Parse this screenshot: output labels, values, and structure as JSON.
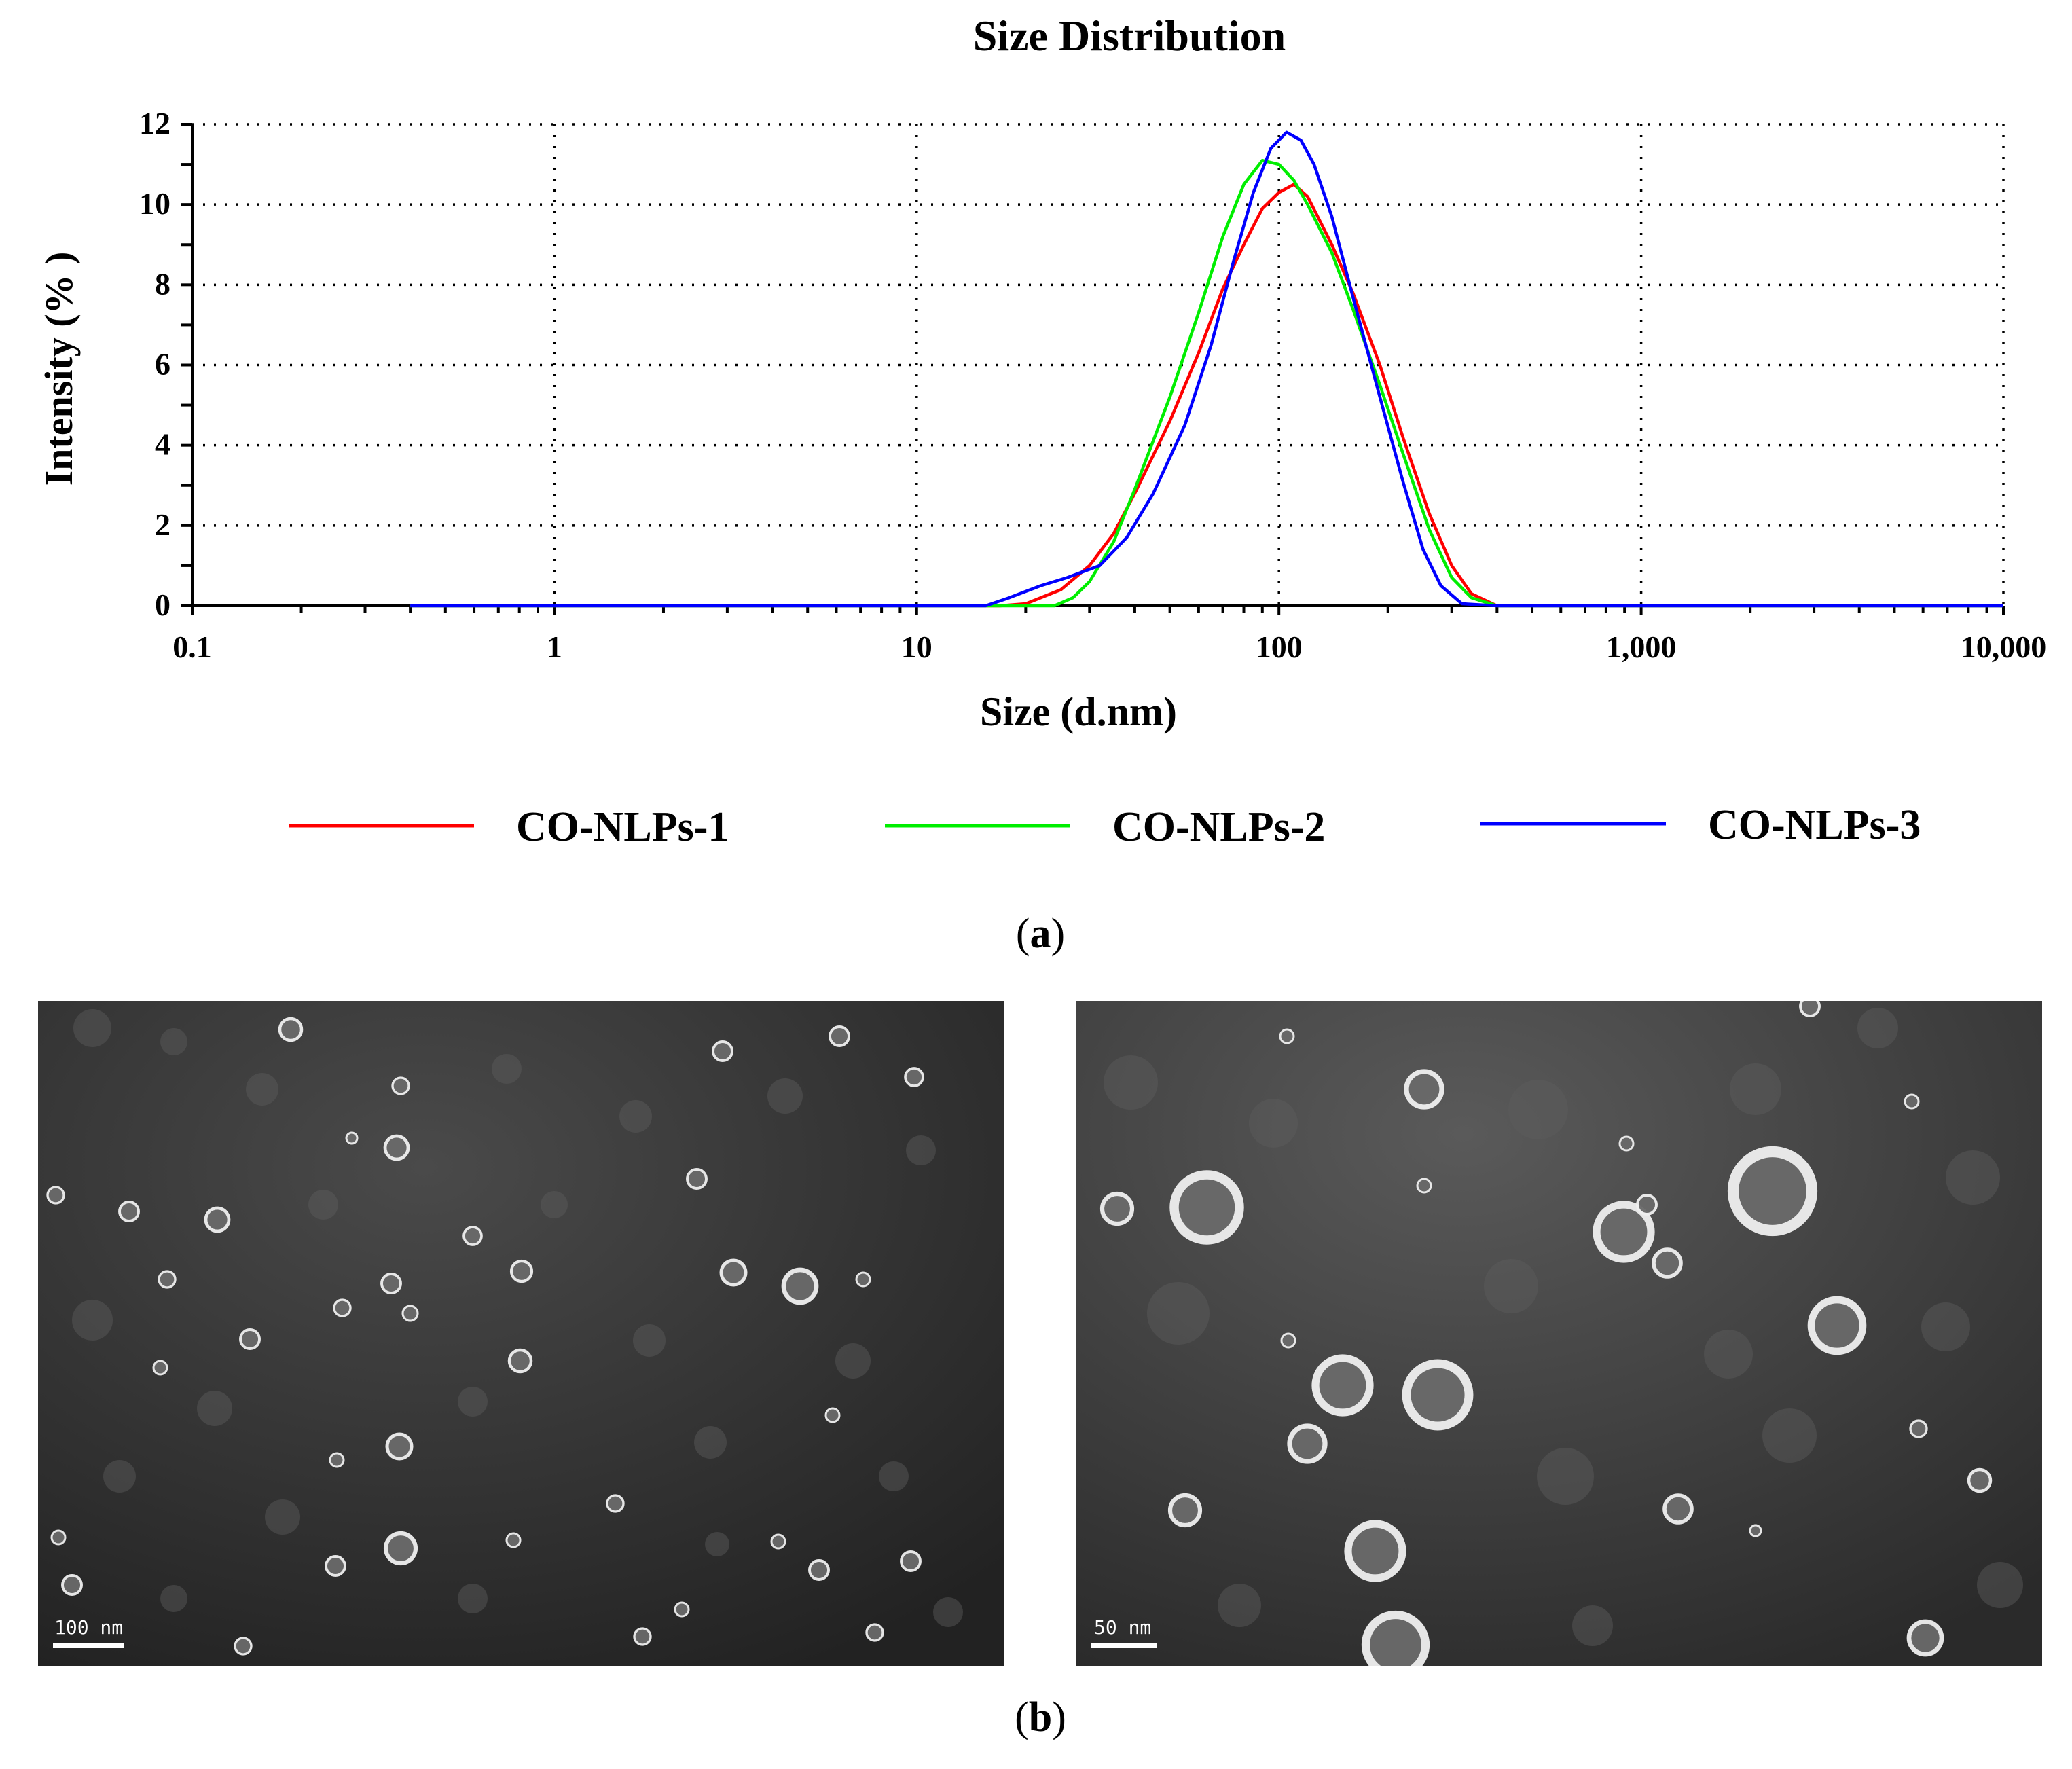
{
  "chart_data": {
    "type": "line",
    "title": "Size Distribution",
    "xlabel": "Size (d.nm)",
    "ylabel": "Intensity (% )",
    "xscale": "log",
    "xlim": [
      0.1,
      10000
    ],
    "ylim": [
      0,
      12
    ],
    "xticks": [
      0.1,
      1,
      10,
      100,
      1000,
      10000
    ],
    "xtick_labels": [
      "0.1",
      "1",
      "10",
      "100",
      "1,000",
      "10,000"
    ],
    "yticks": [
      0,
      2,
      4,
      6,
      8,
      10,
      12
    ],
    "ytick_labels": [
      "0",
      "2",
      "4",
      "6",
      "8",
      "10",
      "12"
    ],
    "grid": true,
    "legend_position": "bottom",
    "series": [
      {
        "name": "CO-NLPs-1",
        "color": "#ff0000",
        "x": [
          0.4,
          17,
          20,
          25,
          30,
          35,
          40,
          50,
          60,
          70,
          80,
          90,
          100,
          110,
          120,
          140,
          160,
          190,
          220,
          260,
          300,
          340,
          400,
          10000
        ],
        "y": [
          0,
          0,
          0.05,
          0.4,
          1.0,
          1.8,
          2.8,
          4.6,
          6.3,
          7.9,
          9.0,
          9.9,
          10.3,
          10.5,
          10.2,
          9.0,
          7.8,
          6.0,
          4.2,
          2.3,
          1.0,
          0.3,
          0,
          0
        ]
      },
      {
        "name": "CO-NLPs-2",
        "color": "#00ee00",
        "x": [
          0.4,
          24,
          27,
          30,
          35,
          40,
          50,
          60,
          70,
          80,
          90,
          100,
          110,
          120,
          140,
          160,
          190,
          220,
          260,
          300,
          340,
          400,
          10000
        ],
        "y": [
          0,
          0,
          0.2,
          0.6,
          1.6,
          2.9,
          5.2,
          7.3,
          9.2,
          10.5,
          11.1,
          11.0,
          10.6,
          10.0,
          8.8,
          7.4,
          5.5,
          3.8,
          1.9,
          0.7,
          0.2,
          0,
          0
        ]
      },
      {
        "name": "CO-NLPs-3",
        "color": "#0000ff",
        "x": [
          0.4,
          15.5,
          18,
          22,
          26,
          32,
          38,
          45,
          55,
          65,
          75,
          85,
          95,
          105,
          115,
          125,
          140,
          160,
          190,
          220,
          250,
          280,
          320,
          400,
          10000
        ],
        "y": [
          0,
          0,
          0.2,
          0.5,
          0.7,
          1.0,
          1.7,
          2.8,
          4.5,
          6.5,
          8.6,
          10.3,
          11.4,
          11.8,
          11.6,
          11.0,
          9.7,
          7.7,
          5.2,
          3.1,
          1.4,
          0.5,
          0.05,
          0,
          0
        ]
      }
    ]
  },
  "panel_labels": {
    "a_open": "(",
    "a_letter": "a",
    "a_close": ")",
    "b_open": "(",
    "b_letter": "b",
    "b_close": ")"
  },
  "tem_images": {
    "left_scalebar": "100 nm",
    "right_scalebar": "50 nm"
  }
}
